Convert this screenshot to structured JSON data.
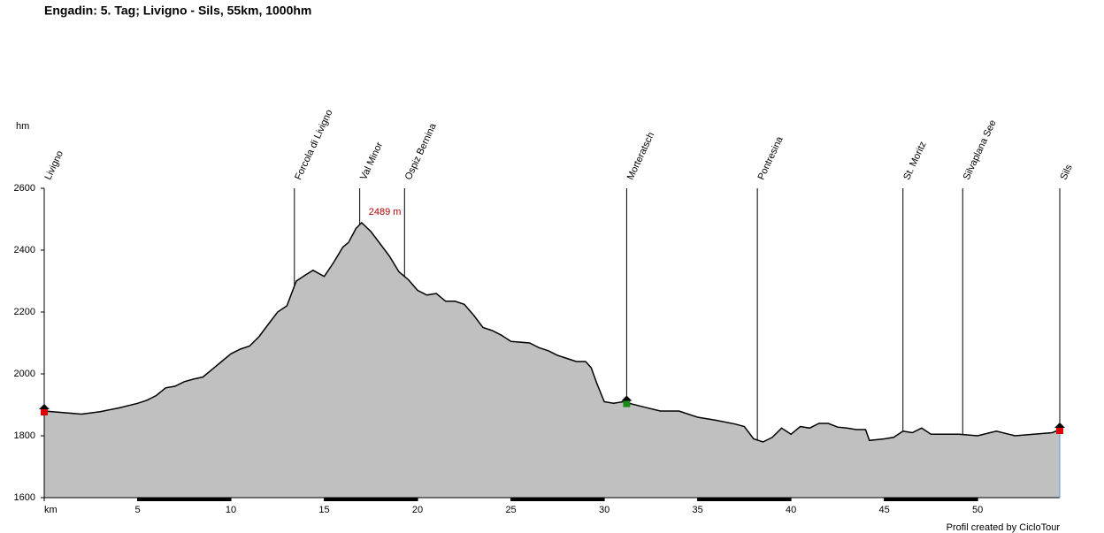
{
  "chart_data": {
    "type": "area",
    "title": "Engadin: 5. Tag; Livigno - Sils, 55km, 1000hm",
    "y_label": "hm",
    "footer": "Profil created by CicloTour",
    "color": "#c0c0c0",
    "line_color": "#000000",
    "x": [
      0,
      1,
      2,
      3,
      4,
      5,
      5.5,
      6,
      6.5,
      7,
      7.5,
      8,
      8.5,
      9,
      9.5,
      10,
      10.5,
      11,
      11.5,
      12,
      12.5,
      13,
      13.5,
      14,
      14.4,
      15,
      15.5,
      16,
      16.3,
      16.7,
      17,
      17.5,
      18,
      18.5,
      19,
      19.5,
      20,
      20.5,
      21,
      21.5,
      22,
      22.5,
      23,
      23.5,
      24,
      24.5,
      25,
      26,
      26.5,
      27,
      27.5,
      28,
      28.5,
      29,
      29.3,
      29.6,
      30,
      30.5,
      31,
      32,
      33,
      34,
      35,
      36,
      37,
      37.5,
      38,
      38.5,
      39,
      39.5,
      40,
      40.5,
      41,
      41.5,
      42,
      42.5,
      43,
      43.5,
      44,
      44.2,
      45,
      45.5,
      46,
      46.5,
      47,
      47.5,
      48,
      49,
      50,
      51,
      52,
      53,
      54,
      54.4
    ],
    "values": [
      1880,
      1875,
      1870,
      1878,
      1890,
      1905,
      1915,
      1930,
      1955,
      1960,
      1975,
      1983,
      1990,
      2015,
      2040,
      2065,
      2080,
      2090,
      2120,
      2160,
      2200,
      2220,
      2300,
      2320,
      2335,
      2315,
      2360,
      2410,
      2425,
      2470,
      2489,
      2460,
      2420,
      2380,
      2330,
      2305,
      2270,
      2255,
      2260,
      2235,
      2235,
      2225,
      2190,
      2150,
      2140,
      2125,
      2105,
      2100,
      2085,
      2075,
      2060,
      2050,
      2040,
      2040,
      2020,
      1970,
      1910,
      1905,
      1910,
      1895,
      1880,
      1880,
      1860,
      1850,
      1838,
      1830,
      1790,
      1780,
      1795,
      1825,
      1805,
      1830,
      1825,
      1840,
      1840,
      1828,
      1825,
      1820,
      1820,
      1785,
      1790,
      1795,
      1815,
      1810,
      1825,
      1805,
      1805,
      1805,
      1800,
      1815,
      1800,
      1805,
      1810,
      1820
    ],
    "xlim": [
      0,
      54.4
    ],
    "ylim": [
      1600,
      2600
    ],
    "xticks": [
      {
        "value": 0,
        "label": "km"
      },
      5,
      10,
      15,
      20,
      25,
      30,
      35,
      40,
      45,
      50
    ],
    "yticks": [
      1600,
      1800,
      2000,
      2200,
      2400,
      2600
    ],
    "waypoints": [
      {
        "x": 0,
        "name": "Livigno"
      },
      {
        "x": 13.4,
        "name": "Forcola di Livigno"
      },
      {
        "x": 16.9,
        "name": "Val Minor"
      },
      {
        "x": 19.3,
        "name": "Ospiz Bernina"
      },
      {
        "x": 31.2,
        "name": "Morteratsch"
      },
      {
        "x": 38.2,
        "name": "Pontresina"
      },
      {
        "x": 46.0,
        "name": "St. Moritz"
      },
      {
        "x": 49.2,
        "name": "Silvaplana See"
      },
      {
        "x": 54.4,
        "name": "Sils"
      }
    ],
    "peak": {
      "x": 17,
      "value": 2489,
      "label": "2489 m"
    }
  }
}
